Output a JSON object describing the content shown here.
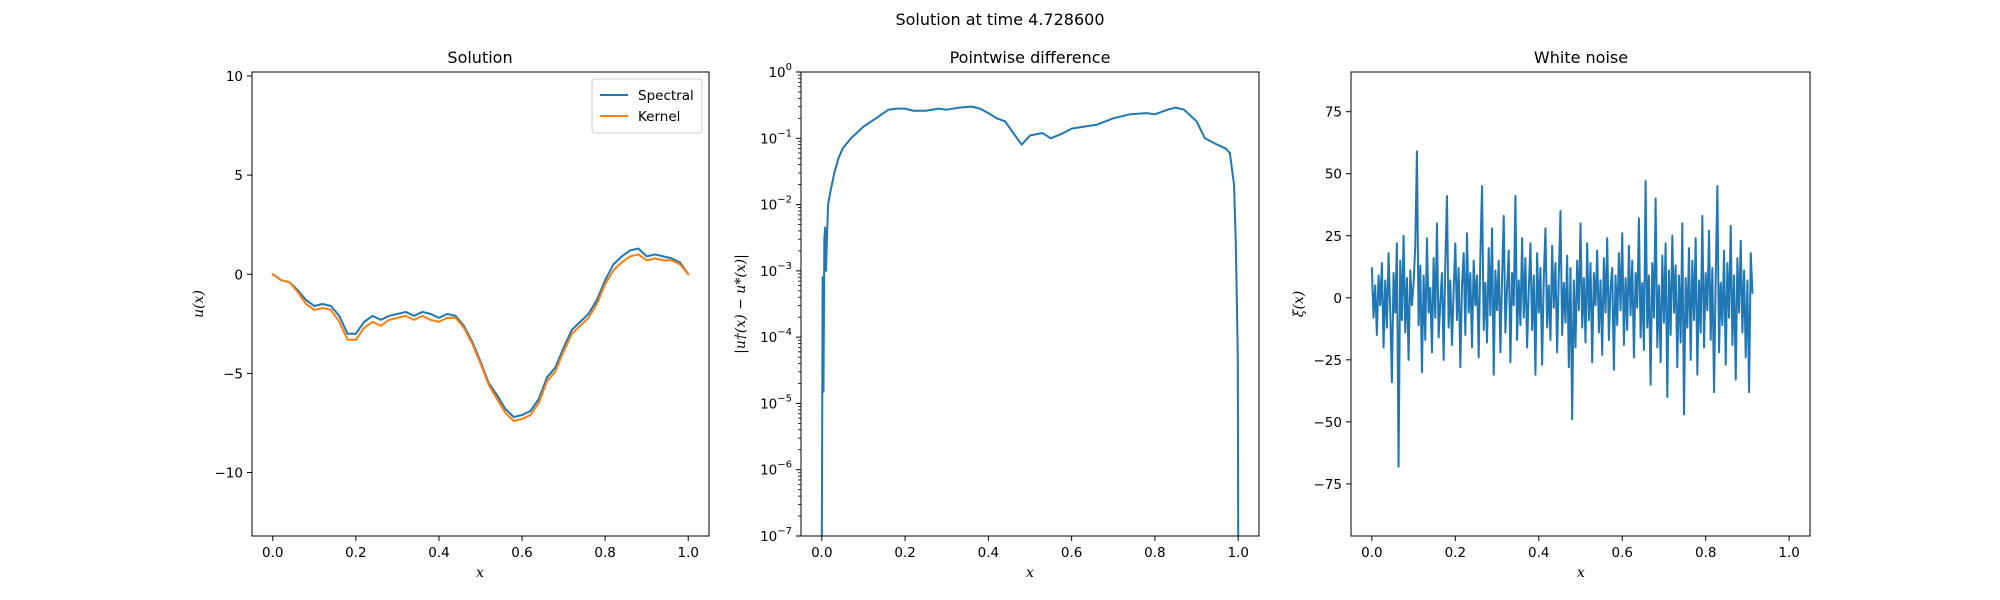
{
  "figure": {
    "suptitle": "Solution at time 4.728600"
  },
  "chart_data": [
    {
      "type": "line",
      "title": "Solution",
      "xlabel": "x",
      "ylabel": "u(x)",
      "xlim": [
        -0.05,
        1.05
      ],
      "ylim": [
        -13.2,
        10.2
      ],
      "xticks": [
        0.0,
        0.2,
        0.4,
        0.6,
        0.8,
        1.0
      ],
      "xtick_labels": [
        "0.0",
        "0.2",
        "0.4",
        "0.6",
        "0.8",
        "1.0"
      ],
      "yticks": [
        10,
        5,
        0,
        -5,
        -10
      ],
      "ytick_labels": [
        "10",
        "5",
        "0",
        "−5",
        "−10"
      ],
      "yscale": "linear",
      "grid": false,
      "legend_position": "top-right",
      "x": [
        0.0,
        0.02,
        0.04,
        0.06,
        0.08,
        0.1,
        0.12,
        0.14,
        0.16,
        0.18,
        0.2,
        0.22,
        0.24,
        0.26,
        0.28,
        0.3,
        0.32,
        0.34,
        0.36,
        0.38,
        0.4,
        0.42,
        0.44,
        0.46,
        0.48,
        0.5,
        0.52,
        0.54,
        0.56,
        0.58,
        0.6,
        0.62,
        0.64,
        0.66,
        0.68,
        0.7,
        0.72,
        0.74,
        0.76,
        0.78,
        0.8,
        0.82,
        0.84,
        0.86,
        0.88,
        0.9,
        0.92,
        0.94,
        0.96,
        0.98,
        1.0
      ],
      "series": [
        {
          "name": "Spectral",
          "color": "#1f77b4",
          "values": [
            0.0,
            -0.3,
            -0.4,
            -0.8,
            -1.3,
            -1.6,
            -1.5,
            -1.6,
            -2.1,
            -3.0,
            -3.0,
            -2.4,
            -2.1,
            -2.3,
            -2.1,
            -2.0,
            -1.9,
            -2.1,
            -1.9,
            -2.0,
            -2.2,
            -2.0,
            -2.1,
            -2.6,
            -3.4,
            -4.4,
            -5.5,
            -6.1,
            -6.8,
            -7.2,
            -7.1,
            -6.9,
            -6.3,
            -5.2,
            -4.7,
            -3.7,
            -2.8,
            -2.4,
            -2.0,
            -1.3,
            -0.3,
            0.5,
            0.9,
            1.2,
            1.3,
            0.9,
            1.0,
            0.9,
            0.8,
            0.6,
            0.0
          ]
        },
        {
          "name": "Kernel",
          "color": "#ff7f0e",
          "values": [
            0.0,
            -0.3,
            -0.4,
            -0.9,
            -1.5,
            -1.8,
            -1.7,
            -1.8,
            -2.4,
            -3.3,
            -3.3,
            -2.7,
            -2.4,
            -2.6,
            -2.3,
            -2.2,
            -2.1,
            -2.3,
            -2.1,
            -2.3,
            -2.4,
            -2.2,
            -2.2,
            -2.7,
            -3.5,
            -4.5,
            -5.6,
            -6.3,
            -7.0,
            -7.4,
            -7.3,
            -7.1,
            -6.5,
            -5.4,
            -4.9,
            -3.9,
            -3.0,
            -2.6,
            -2.2,
            -1.5,
            -0.5,
            0.2,
            0.6,
            0.9,
            1.0,
            0.7,
            0.8,
            0.7,
            0.7,
            0.5,
            0.0
          ]
        }
      ]
    },
    {
      "type": "line",
      "title": "Pointwise difference",
      "xlabel": "x",
      "ylabel": "|u†(x) − u*(x)|",
      "xlim": [
        -0.05,
        1.05
      ],
      "ylim": [
        1e-07,
        1
      ],
      "yscale": "log",
      "xticks": [
        0.0,
        0.2,
        0.4,
        0.6,
        0.8,
        1.0
      ],
      "xtick_labels": [
        "0.0",
        "0.2",
        "0.4",
        "0.6",
        "0.8",
        "1.0"
      ],
      "yticks": [
        1,
        0.1,
        0.01,
        0.001,
        0.0001,
        1e-05,
        1e-06,
        1e-07
      ],
      "ytick_base": "10",
      "ytick_exponents": [
        "0",
        "−1",
        "−2",
        "−3",
        "−4",
        "−5",
        "−6",
        "−7"
      ],
      "grid": false,
      "x": [
        0.0,
        0.002,
        0.004,
        0.006,
        0.008,
        0.01,
        0.015,
        0.02,
        0.03,
        0.04,
        0.05,
        0.07,
        0.1,
        0.13,
        0.16,
        0.18,
        0.2,
        0.22,
        0.25,
        0.28,
        0.3,
        0.33,
        0.36,
        0.38,
        0.4,
        0.42,
        0.44,
        0.46,
        0.48,
        0.5,
        0.53,
        0.55,
        0.58,
        0.6,
        0.63,
        0.66,
        0.7,
        0.74,
        0.78,
        0.8,
        0.83,
        0.85,
        0.87,
        0.9,
        0.92,
        0.95,
        0.97,
        0.98,
        0.99,
        0.994,
        0.997,
        0.999,
        1.0
      ],
      "series": [
        {
          "name": "",
          "color": "#1f77b4",
          "values": [
            1e-07,
            0.0008,
            1.5e-05,
            0.003,
            0.0045,
            0.001,
            0.01,
            0.015,
            0.03,
            0.05,
            0.07,
            0.1,
            0.15,
            0.2,
            0.27,
            0.28,
            0.28,
            0.26,
            0.26,
            0.28,
            0.27,
            0.29,
            0.3,
            0.28,
            0.24,
            0.2,
            0.18,
            0.12,
            0.08,
            0.11,
            0.12,
            0.1,
            0.12,
            0.14,
            0.15,
            0.16,
            0.2,
            0.23,
            0.24,
            0.23,
            0.27,
            0.29,
            0.27,
            0.18,
            0.1,
            0.08,
            0.07,
            0.06,
            0.02,
            0.003,
            0.0003,
            5e-05,
            1e-07
          ]
        }
      ]
    },
    {
      "type": "line",
      "title": "White noise",
      "xlabel": "x",
      "ylabel": "ξ(x)",
      "xlim": [
        -0.05,
        1.05
      ],
      "ylim": [
        -96,
        91
      ],
      "xticks": [
        0.0,
        0.2,
        0.4,
        0.6,
        0.8,
        1.0
      ],
      "xtick_labels": [
        "0.0",
        "0.2",
        "0.4",
        "0.6",
        "0.8",
        "1.0"
      ],
      "yticks": [
        75,
        50,
        25,
        0,
        -25,
        -50,
        -75
      ],
      "ytick_labels": [
        "75",
        "50",
        "25",
        "0",
        "−25",
        "−50",
        "−75"
      ],
      "yscale": "linear",
      "grid": false,
      "x_start": 0.0,
      "x_step": 0.004,
      "series": [
        {
          "name": "",
          "color": "#1f77b4",
          "values": [
            12,
            -8,
            5,
            -15,
            9,
            -3,
            14,
            -20,
            7,
            -12,
            18,
            -5,
            -34,
            10,
            -6,
            22,
            -68,
            15,
            -9,
            25,
            -14,
            8,
            -25,
            11,
            -3,
            6,
            21,
            59,
            -11,
            13,
            -30,
            9,
            -17,
            24,
            -6,
            4,
            -22,
            16,
            -8,
            30,
            -16,
            -2,
            10,
            -25,
            14,
            41,
            -12,
            7,
            -19,
            3,
            22,
            -9,
            12,
            -28,
            5,
            18,
            -15,
            26,
            -6,
            10,
            -20,
            15,
            -3,
            9,
            -24,
            17,
            45,
            -13,
            6,
            -18,
            20,
            -7,
            28,
            -31,
            11,
            -5,
            15,
            -22,
            8,
            33,
            -14,
            4,
            19,
            -26,
            10,
            -3,
            41,
            -17,
            7,
            -11,
            24,
            -8,
            16,
            -20,
            3,
            22,
            -13,
            9,
            -31,
            18,
            -6,
            12,
            -27,
            8,
            28,
            -12,
            5,
            -17,
            21,
            -4,
            14,
            -22,
            9,
            35,
            -15,
            6,
            -10,
            17,
            -28,
            12,
            -49,
            7,
            -20,
            15,
            -5,
            30,
            -12,
            8,
            -18,
            22,
            -9,
            14,
            -26,
            10,
            -3,
            19,
            -14,
            7,
            -23,
            16,
            -6,
            24,
            -17,
            4,
            12,
            -29,
            9,
            -11,
            18,
            -5,
            26,
            -19,
            8,
            -13,
            21,
            -7,
            15,
            -24,
            10,
            -4,
            32,
            -16,
            6,
            -21,
            47,
            -12,
            9,
            -35,
            14,
            -8,
            40,
            -20,
            5,
            -26,
            17,
            -10,
            22,
            -40,
            11,
            -15,
            25,
            -6,
            13,
            -28,
            9,
            -18,
            30,
            -47,
            8,
            -12,
            20,
            -25,
            15,
            -9,
            24,
            -31,
            7,
            -14,
            33,
            -20,
            10,
            -5,
            27,
            -17,
            12,
            -38,
            8,
            45,
            -22,
            6,
            -11,
            19,
            -27,
            14,
            -8,
            29,
            -19,
            9,
            -33,
            16,
            -6,
            23,
            -14,
            11,
            -24,
            7,
            -38,
            18,
            2
          ]
        }
      ]
    }
  ]
}
